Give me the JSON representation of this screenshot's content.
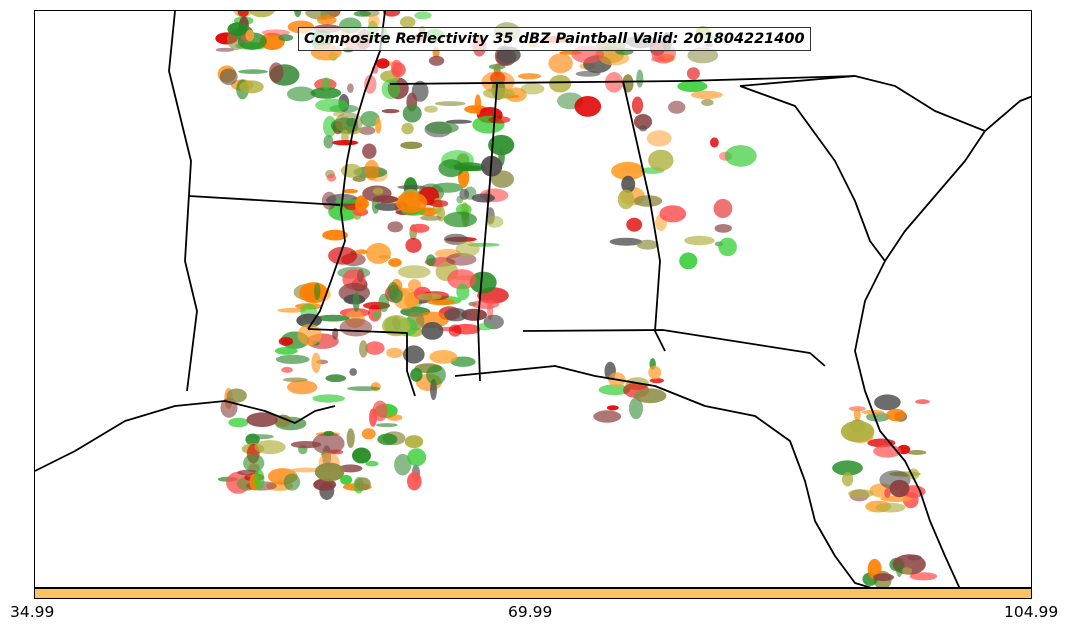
{
  "title": "Composite Reflectivity 35 dBZ Paintball Valid: 201804221400",
  "colorbar": {
    "color": "#fbc362",
    "tick_labels": [
      "34.99",
      "69.99",
      "104.99"
    ]
  },
  "member_colors": [
    "#e00000",
    "#ff5050",
    "#ff7f00",
    "#ffa030",
    "#32cd32",
    "#228b22",
    "#8b4040",
    "#8b8b40",
    "#505050",
    "#b0b040",
    "#3c8c3c"
  ],
  "icons": {
    "map": "paintball-reflectivity-map"
  }
}
